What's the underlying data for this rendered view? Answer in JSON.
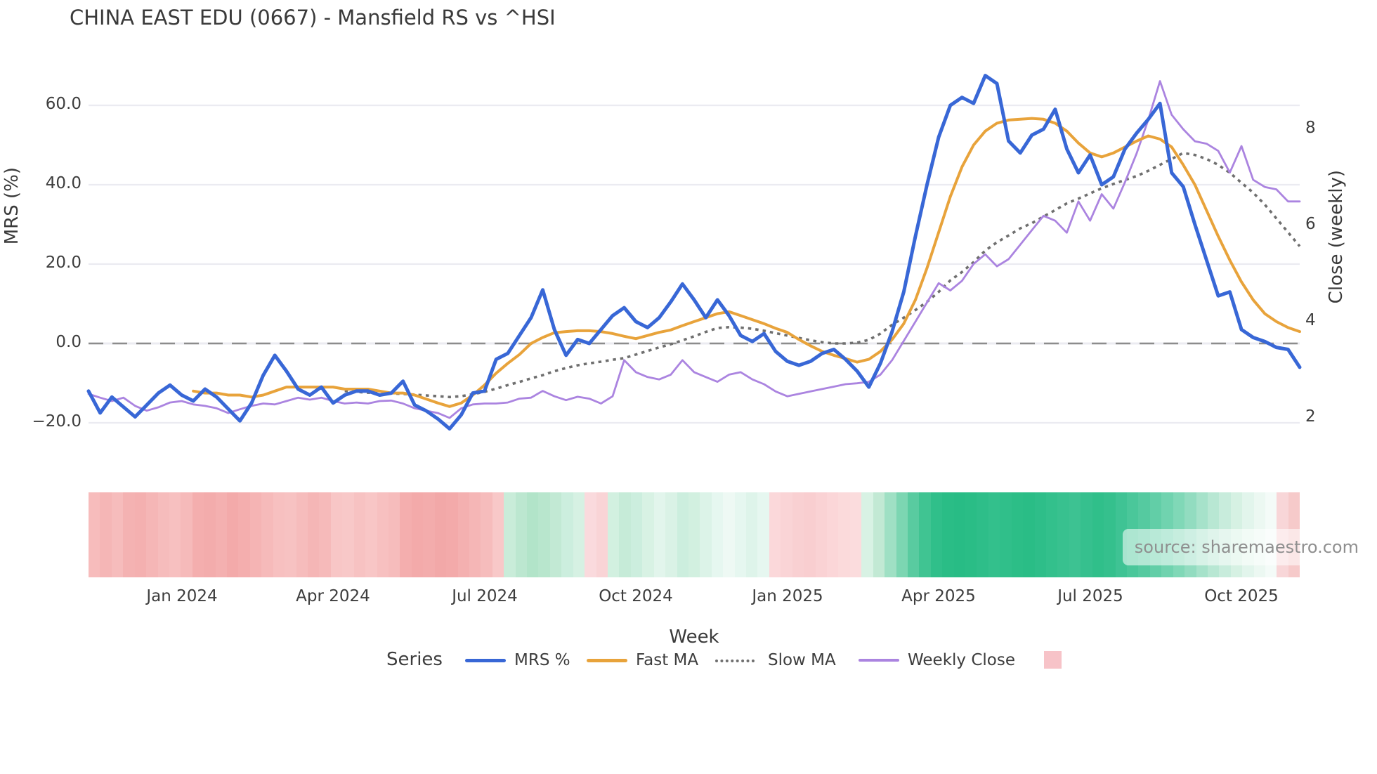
{
  "title": "CHINA EAST EDU (0667) - Mansfield RS vs ^HSI",
  "watermark": "source: sharemaestro.com",
  "axes": {
    "left": {
      "title": "MRS (%)",
      "ticks": [
        {
          "label": "60.0",
          "value": 60
        },
        {
          "label": "40.0",
          "value": 40
        },
        {
          "label": "20.0",
          "value": 20
        },
        {
          "label": "0.0",
          "value": 0
        },
        {
          "label": "−20.0",
          "value": -20
        }
      ]
    },
    "right": {
      "title": "Close (weekly)",
      "ticks": [
        {
          "label": "8",
          "value": 8
        },
        {
          "label": "6",
          "value": 6
        },
        {
          "label": "4",
          "value": 4
        },
        {
          "label": "2",
          "value": 2
        }
      ]
    },
    "x": {
      "title": "Week",
      "ticks": [
        {
          "label": "Jan 2024",
          "week": 8
        },
        {
          "label": "Apr 2024",
          "week": 21
        },
        {
          "label": "Jul 2024",
          "week": 34
        },
        {
          "label": "Oct 2024",
          "week": 47
        },
        {
          "label": "Jan 2025",
          "week": 60
        },
        {
          "label": "Apr 2025",
          "week": 73
        },
        {
          "label": "Jul 2025",
          "week": 86
        },
        {
          "label": "Oct 2025",
          "week": 99
        }
      ]
    }
  },
  "legend": {
    "title": "Series",
    "items": [
      {
        "label": "MRS %",
        "color": "#3867d6",
        "style": "solid"
      },
      {
        "label": "Fast MA",
        "color": "#e8a33b",
        "style": "solid"
      },
      {
        "label": "Slow MA",
        "color": "#6f6f6f",
        "style": "dotted"
      },
      {
        "label": "Weekly Close",
        "color": "#ab84e0",
        "style": "solid"
      }
    ],
    "extra_swatch_color": "#f7c3c8"
  },
  "colors": {
    "mrs": "#3867d6",
    "fast_ma": "#e8a33b",
    "slow_ma": "#6f6f6f",
    "weekly_close": "#ab84e0",
    "zero_dash": "#8c8c8c",
    "gridline": "#ebebf1",
    "text": "#3d3d3d",
    "watermark_text": "#8f8f8f"
  },
  "chart_data": {
    "type": "line",
    "title": "CHINA EAST EDU (0667) - Mansfield RS vs ^HSI",
    "xlabel": "Week",
    "ylabel_left": "MRS (%)",
    "ylabel_right": "Close (weekly)",
    "x_unit": "weekly, Nov 2023 through Nov 2025, 105 points",
    "x_tick_weeks": [
      8,
      21,
      34,
      47,
      60,
      73,
      86,
      99
    ],
    "x_tick_labels": [
      "Jan 2024",
      "Apr 2024",
      "Jul 2024",
      "Oct 2024",
      "Jan 2025",
      "Apr 2025",
      "Jul 2025",
      "Oct 2025"
    ],
    "ylim_left": [
      -25,
      70
    ],
    "yticks_left": [
      60,
      40,
      20,
      0,
      -20
    ],
    "ylim_right": [
      1.45,
      9.55
    ],
    "yticks_right": [
      8,
      6,
      4,
      2
    ],
    "zero_reference_line": 0,
    "grid": "horizontal only",
    "legend_position": "bottom",
    "series": [
      {
        "name": "MRS %",
        "axis": "left",
        "color": "#3867d6",
        "style": "solid",
        "width": 5,
        "values": [
          -12,
          -17.5,
          -13.5,
          -16,
          -18.5,
          -15.5,
          -12.5,
          -10.5,
          -13,
          -14.5,
          -11.5,
          -13.5,
          -16.5,
          -19.5,
          -15,
          -8,
          -3,
          -7,
          -11.5,
          -13,
          -11,
          -15,
          -13,
          -12,
          -12,
          -13,
          -12.5,
          -9.5,
          -15.5,
          -17,
          -19,
          -21.5,
          -18,
          -12.5,
          -12,
          -4,
          -2.5,
          2,
          6.5,
          13.5,
          3.5,
          -3,
          1,
          0,
          3.5,
          7,
          9,
          5.5,
          4,
          6.5,
          10.5,
          15,
          11,
          6.5,
          11,
          7,
          2,
          0.5,
          2.5,
          -2,
          -4.5,
          -5.5,
          -4.5,
          -2.5,
          -1.5,
          -4,
          -7,
          -11,
          -5,
          3,
          13,
          27,
          40,
          52,
          60,
          62,
          60.5,
          67.5,
          65.5,
          51,
          48,
          52.5,
          54,
          59,
          49,
          43,
          47.5,
          40,
          42,
          49,
          53,
          56.5,
          60.5,
          43,
          39.5,
          30,
          21,
          12,
          13,
          3.5,
          1.5,
          0.5,
          -1,
          -1.5,
          -6
        ]
      },
      {
        "name": "Fast MA",
        "axis": "left",
        "color": "#e8a33b",
        "style": "solid",
        "width": 4,
        "values": [
          null,
          null,
          null,
          null,
          null,
          null,
          null,
          null,
          null,
          -12,
          -12.5,
          -12.5,
          -13,
          -13,
          -13.5,
          -13,
          -12,
          -11,
          -11,
          -11,
          -11,
          -11,
          -11.5,
          -11.5,
          -11.5,
          -12,
          -12.5,
          -12.5,
          -13,
          -14,
          -15,
          -15.9,
          -15,
          -13,
          -10.5,
          -7.5,
          -5,
          -2.8,
          0,
          1.5,
          2.7,
          3,
          3.2,
          3.2,
          3,
          2.5,
          1.8,
          1.2,
          2,
          2.8,
          3.4,
          4.5,
          5.5,
          6.5,
          7.5,
          8,
          7,
          6,
          5,
          3.8,
          2.8,
          1,
          -0.6,
          -2,
          -3,
          -3.8,
          -4.7,
          -4,
          -2,
          1,
          5,
          11,
          19,
          28,
          37,
          44.5,
          50,
          53.5,
          55.5,
          56.3,
          56.5,
          56.7,
          56.5,
          55.5,
          53.5,
          50.5,
          48,
          47,
          48,
          49.5,
          51,
          52.3,
          51.5,
          49.5,
          45,
          40,
          33.5,
          27,
          21,
          15.5,
          11,
          7.5,
          5.5,
          4,
          3
        ]
      },
      {
        "name": "Slow MA",
        "axis": "left",
        "color": "#6f6f6f",
        "style": "dotted",
        "width": 3.6,
        "values": [
          null,
          null,
          null,
          null,
          null,
          null,
          null,
          null,
          null,
          null,
          null,
          null,
          null,
          null,
          null,
          null,
          null,
          null,
          null,
          null,
          null,
          null,
          -12,
          -12.2,
          -12.4,
          -12.5,
          -12.6,
          -12.7,
          -12.9,
          -13.1,
          -13.3,
          -13.5,
          -13.3,
          -12.8,
          -12.2,
          -11.4,
          -10.5,
          -9.7,
          -8.8,
          -8,
          -7,
          -6.2,
          -5.5,
          -5,
          -4.6,
          -4.1,
          -3.7,
          -2.8,
          -1.9,
          -1,
          -0.2,
          0.8,
          1.8,
          2.9,
          3.9,
          4.1,
          4,
          3.7,
          3.2,
          2.6,
          2,
          1.4,
          0.8,
          0.3,
          0,
          0,
          0.2,
          0.9,
          2.5,
          4.7,
          6.5,
          8.4,
          10.5,
          13,
          15.9,
          18,
          20.5,
          23.4,
          25.5,
          27.2,
          29,
          30.3,
          32,
          33.6,
          35.3,
          36.5,
          37.8,
          39.1,
          40.2,
          41.2,
          42.2,
          43.5,
          45,
          46.5,
          48,
          47.5,
          46.5,
          45,
          43,
          40.5,
          38,
          35,
          31.5,
          28,
          24.5
        ]
      },
      {
        "name": "Weekly Close",
        "axis": "right",
        "color": "#ab84e0",
        "style": "solid",
        "width": 2.8,
        "values": [
          2.5,
          2.42,
          2.35,
          2.42,
          2.25,
          2.15,
          2.22,
          2.32,
          2.35,
          2.28,
          2.25,
          2.2,
          2.1,
          2.18,
          2.25,
          2.3,
          2.28,
          2.35,
          2.42,
          2.38,
          2.42,
          2.35,
          2.3,
          2.32,
          2.3,
          2.35,
          2.36,
          2.3,
          2.2,
          2.15,
          2.1,
          2.0,
          2.2,
          2.28,
          2.3,
          2.3,
          2.32,
          2.4,
          2.42,
          2.56,
          2.45,
          2.37,
          2.44,
          2.4,
          2.3,
          2.45,
          3.2,
          2.95,
          2.85,
          2.8,
          2.9,
          3.2,
          2.95,
          2.85,
          2.75,
          2.9,
          2.95,
          2.8,
          2.7,
          2.55,
          2.45,
          2.5,
          2.55,
          2.6,
          2.65,
          2.7,
          2.72,
          2.75,
          2.9,
          3.2,
          3.6,
          4.0,
          4.4,
          4.8,
          4.65,
          4.85,
          5.2,
          5.4,
          5.15,
          5.3,
          5.6,
          5.9,
          6.2,
          6.1,
          5.85,
          6.5,
          6.1,
          6.65,
          6.35,
          6.9,
          7.5,
          8.2,
          9.0,
          8.3,
          8.0,
          7.75,
          7.7,
          7.55,
          7.1,
          7.65,
          6.95,
          6.8,
          6.75,
          6.5,
          6.5
        ]
      }
    ],
    "heatmap_strip": {
      "description": "weekly sentiment band under chart, red=negative MRS, green=positive",
      "colors": [
        "#f7bcbc",
        "#f5b6b6",
        "#f6bcbc",
        "#f4b2b2",
        "#f4b0b0",
        "#f5b6b6",
        "#f6bcbc",
        "#f7c0c0",
        "#f6baba",
        "#f4aeae",
        "#f3acac",
        "#f4b0b0",
        "#f3aaaa",
        "#f4aeae",
        "#f5b4b4",
        "#f6baba",
        "#f7c0c0",
        "#f7c2c2",
        "#f6bcbc",
        "#f5b6b6",
        "#f6baba",
        "#f8c6c6",
        "#f8c8c8",
        "#f7c2c2",
        "#f8c6c6",
        "#f7c0c0",
        "#f6bcbc",
        "#f4aeae",
        "#f3aaaa",
        "#f3acac",
        "#f2a8a8",
        "#f3aaaa",
        "#f4b0b0",
        "#f5b6b6",
        "#f6bcbc",
        "#f8c8c8",
        "#c9ecd9",
        "#bce7d0",
        "#b2e4c9",
        "#b8e6cd",
        "#c2e9d4",
        "#cceede",
        "#d6f1e3",
        "#fadadd",
        "#f9d4d6",
        "#d2f0e0",
        "#c6ebd8",
        "#cceede",
        "#d8f2e4",
        "#e2f5ec",
        "#daf2e6",
        "#cceede",
        "#d2f0e0",
        "#dcf3e8",
        "#e6f7f0",
        "#eef9f4",
        "#e6f7f0",
        "#def4ea",
        "#e6f7f0",
        "#fbd8da",
        "#fad4d6",
        "#f9d0d2",
        "#f9ced0",
        "#fad2d4",
        "#fbd6d8",
        "#fbdadb",
        "#fbdcdd",
        "#d8f2e4",
        "#c2e9d4",
        "#9fe0c4",
        "#7cd6b2",
        "#59cba0",
        "#40c492",
        "#30bf8a",
        "#2abd86",
        "#28bc85",
        "#2abd86",
        "#2ebe89",
        "#33c08c",
        "#30bf8a",
        "#2cbe87",
        "#2abd86",
        "#2ebe89",
        "#33c08c",
        "#38c18f",
        "#3dc292",
        "#36c08e",
        "#30bf8a",
        "#35c08d",
        "#3fc394",
        "#4ac79a",
        "#55caa0",
        "#62cea7",
        "#70d3af",
        "#80d8b7",
        "#92dcc0",
        "#a6e2ca",
        "#b8e7d3",
        "#c8ecdc",
        "#d6f1e3",
        "#e2f5ec",
        "#ecf8f2",
        "#f4fbf8",
        "#f8d6d8",
        "#f6caca"
      ]
    }
  }
}
